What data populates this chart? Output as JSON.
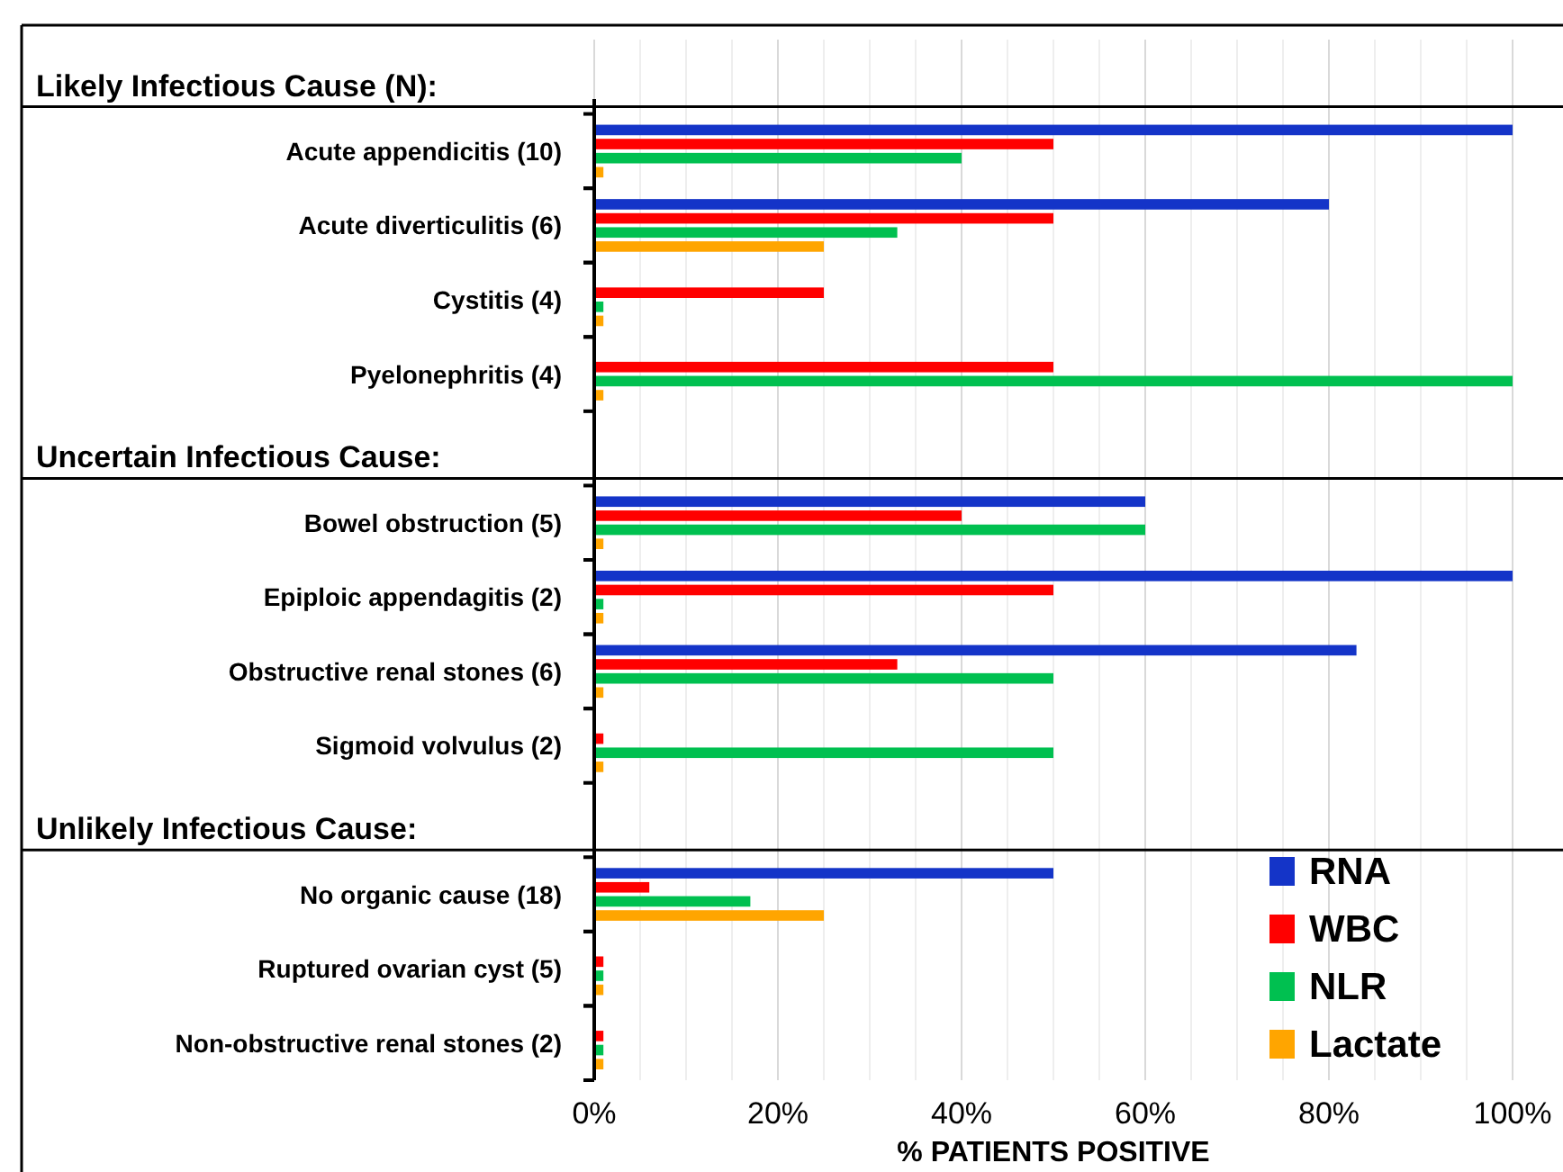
{
  "chart_data": {
    "type": "bar",
    "orientation": "horizontal",
    "xlabel": "% PATIENTS POSITIVE",
    "categories": [
      null,
      "Acute appendicitis (10)",
      "Acute diverticulitis (6)",
      "Cystitis (4)",
      "Pyelonephritis (4)",
      null,
      "Bowel obstruction (5)",
      "Epiploic appendagitis (2)",
      "Obstructive renal stones (6)",
      "Sigmoid volvulus (2)",
      null,
      "No organic cause (18)",
      "Ruptured ovarian cyst (5)",
      "Non-obstructive renal stones (2)"
    ],
    "annotations": [
      "Likely Infectious Cause (N):",
      "Uncertain Infectious Cause:",
      "Unlikely Infectious Cause:"
    ],
    "series": [
      {
        "name": "RNA",
        "color": "#1434c8",
        "values": [
          null,
          100,
          80,
          null,
          null,
          null,
          60,
          100,
          83,
          null,
          null,
          50,
          null,
          null
        ]
      },
      {
        "name": "WBC",
        "color": "#ff0000",
        "values": [
          null,
          50,
          50,
          25,
          50,
          null,
          40,
          50,
          33,
          1,
          null,
          6,
          1,
          1
        ]
      },
      {
        "name": "NLR",
        "color": "#00c050",
        "values": [
          null,
          40,
          33,
          1,
          100,
          null,
          60,
          1,
          50,
          50,
          null,
          17,
          1,
          1
        ]
      },
      {
        "name": "Lactate",
        "color": "#ffa500",
        "values": [
          null,
          1,
          25,
          1,
          1,
          null,
          1,
          1,
          1,
          1,
          null,
          25,
          1,
          1
        ]
      }
    ],
    "xlim": [
      0,
      100
    ],
    "xticks": [
      {
        "value": 0,
        "label": "0%"
      },
      {
        "value": 5,
        "label": null
      },
      {
        "value": 10,
        "label": null
      },
      {
        "value": 15,
        "label": null
      },
      {
        "value": 20,
        "label": "20%"
      },
      {
        "value": 25,
        "label": null
      },
      {
        "value": 30,
        "label": null
      },
      {
        "value": 35,
        "label": null
      },
      {
        "value": 40,
        "label": "40%"
      },
      {
        "value": 45,
        "label": null
      },
      {
        "value": 50,
        "label": null
      },
      {
        "value": 55,
        "label": null
      },
      {
        "value": 60,
        "label": "60%"
      },
      {
        "value": 65,
        "label": null
      },
      {
        "value": 70,
        "label": null
      },
      {
        "value": 75,
        "label": null
      },
      {
        "value": 80,
        "label": "80%"
      },
      {
        "value": 85,
        "label": null
      },
      {
        "value": 90,
        "label": null
      },
      {
        "value": 95,
        "label": null
      },
      {
        "value": 100,
        "label": "100%"
      }
    ],
    "grid": "x",
    "legend": "bottom right"
  }
}
